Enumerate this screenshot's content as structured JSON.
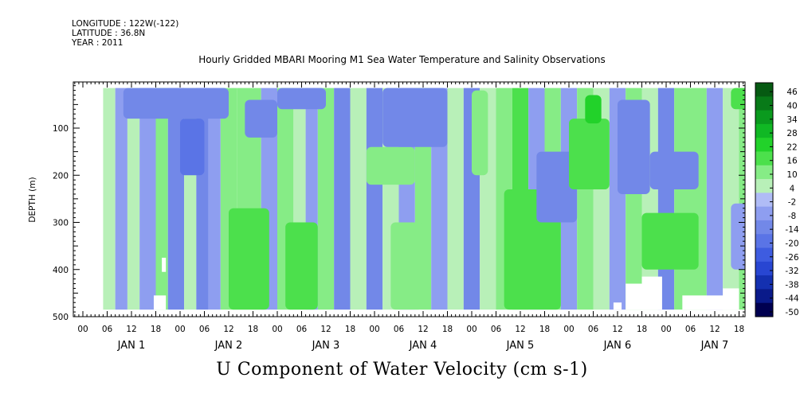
{
  "header": {
    "longitude": "LONGITUDE : 122W(-122)",
    "latitude": "LATITUDE : 36.8N",
    "year": "YEAR : 2011"
  },
  "chart_data": {
    "type": "heatmap",
    "title": "Hourly Gridded MBARI Mooring M1 Sea Water Temperature and Salinity Observations",
    "caption": "U Component of Water Velocity (cm s-1)",
    "ylabel": "DEPTH (m)",
    "ylim": [
      500,
      0
    ],
    "yticks": [
      100,
      200,
      300,
      400,
      500
    ],
    "xhour_labels": [
      "00",
      "06",
      "12",
      "18",
      "00",
      "06",
      "12",
      "18",
      "00",
      "06",
      "12",
      "18",
      "00",
      "06",
      "12",
      "18",
      "00",
      "06",
      "12",
      "18",
      "00",
      "06",
      "12",
      "18",
      "00",
      "06",
      "12",
      "18"
    ],
    "day_labels": [
      "JAN  1",
      "JAN  2",
      "JAN  3",
      "JAN  4",
      "JAN  5",
      "JAN  6",
      "JAN  7"
    ],
    "xlim_hours": [
      0,
      168
    ],
    "colorbar": {
      "levels": [
        46,
        40,
        34,
        28,
        22,
        16,
        10,
        4,
        -2,
        -8,
        -14,
        -20,
        -26,
        -32,
        -38,
        -44,
        -50
      ],
      "labels": [
        "46",
        "40",
        "34",
        "28",
        "22",
        "16",
        "10",
        "4",
        "-2",
        "-8",
        "-14",
        "-20",
        "-26",
        "-32",
        "-38",
        "-44",
        "-50"
      ]
    },
    "data_depth_range_m": [
      15,
      485
    ],
    "data_start_hour": 5,
    "bands": [
      {
        "h0": 5,
        "h1": 8,
        "v": 6
      },
      {
        "h0": 8,
        "h1": 11,
        "v": -6
      },
      {
        "h0": 11,
        "h1": 14,
        "v": 8
      },
      {
        "h0": 14,
        "h1": 18,
        "v": -4
      },
      {
        "h0": 18,
        "h1": 21,
        "v": 10
      },
      {
        "h0": 21,
        "h1": 25,
        "v": -10
      },
      {
        "h0": 25,
        "h1": 28,
        "v": 6
      },
      {
        "h0": 28,
        "h1": 31,
        "v": -14
      },
      {
        "h0": 31,
        "h1": 34,
        "v": -8
      },
      {
        "h0": 34,
        "h1": 38,
        "v": 12
      },
      {
        "h0": 38,
        "h1": 44,
        "v": 14
      },
      {
        "h0": 44,
        "h1": 48,
        "v": -6
      },
      {
        "h0": 48,
        "h1": 52,
        "v": 14
      },
      {
        "h0": 52,
        "h1": 55,
        "v": 6
      },
      {
        "h0": 55,
        "h1": 58,
        "v": -8
      },
      {
        "h0": 58,
        "h1": 62,
        "v": 10
      },
      {
        "h0": 62,
        "h1": 66,
        "v": -10
      },
      {
        "h0": 66,
        "h1": 70,
        "v": 8
      },
      {
        "h0": 70,
        "h1": 74,
        "v": -12
      },
      {
        "h0": 74,
        "h1": 78,
        "v": 6
      },
      {
        "h0": 78,
        "h1": 82,
        "v": -8
      },
      {
        "h0": 82,
        "h1": 86,
        "v": 10
      },
      {
        "h0": 86,
        "h1": 90,
        "v": -4
      },
      {
        "h0": 90,
        "h1": 94,
        "v": 8
      },
      {
        "h0": 94,
        "h1": 98,
        "v": -10
      },
      {
        "h0": 98,
        "h1": 102,
        "v": 6
      },
      {
        "h0": 102,
        "h1": 106,
        "v": 12
      },
      {
        "h0": 106,
        "h1": 110,
        "v": 16
      },
      {
        "h0": 110,
        "h1": 114,
        "v": -6
      },
      {
        "h0": 114,
        "h1": 118,
        "v": 10
      },
      {
        "h0": 118,
        "h1": 122,
        "v": -8
      },
      {
        "h0": 122,
        "h1": 126,
        "v": 14
      },
      {
        "h0": 126,
        "h1": 130,
        "v": 8
      },
      {
        "h0": 130,
        "h1": 134,
        "v": -6
      },
      {
        "h0": 134,
        "h1": 138,
        "v": 12
      },
      {
        "h0": 138,
        "h1": 142,
        "v": 6
      },
      {
        "h0": 142,
        "h1": 146,
        "v": -10
      },
      {
        "h0": 146,
        "h1": 150,
        "v": 10
      },
      {
        "h0": 150,
        "h1": 154,
        "v": 14
      },
      {
        "h0": 154,
        "h1": 158,
        "v": -4
      },
      {
        "h0": 158,
        "h1": 162,
        "v": 8
      },
      {
        "h0": 162,
        "h1": 168,
        "v": 12
      }
    ],
    "cells": [
      {
        "h0": 10,
        "h1": 36,
        "d0": 15,
        "d1": 80,
        "v": -10
      },
      {
        "h0": 24,
        "h1": 30,
        "d0": 80,
        "d1": 200,
        "v": -16
      },
      {
        "h0": 36,
        "h1": 46,
        "d0": 270,
        "d1": 485,
        "v": 18
      },
      {
        "h0": 40,
        "h1": 48,
        "d0": 40,
        "d1": 120,
        "v": -14
      },
      {
        "h0": 48,
        "h1": 60,
        "d0": 15,
        "d1": 60,
        "v": -12
      },
      {
        "h0": 50,
        "h1": 58,
        "d0": 300,
        "d1": 485,
        "v": 20
      },
      {
        "h0": 70,
        "h1": 82,
        "d0": 140,
        "d1": 220,
        "v": 12
      },
      {
        "h0": 74,
        "h1": 90,
        "d0": 15,
        "d1": 140,
        "v": -12
      },
      {
        "h0": 76,
        "h1": 84,
        "d0": 300,
        "d1": 485,
        "v": 12
      },
      {
        "h0": 96,
        "h1": 100,
        "d0": 20,
        "d1": 200,
        "v": 14
      },
      {
        "h0": 104,
        "h1": 118,
        "d0": 230,
        "d1": 485,
        "v": 18
      },
      {
        "h0": 112,
        "h1": 122,
        "d0": 150,
        "d1": 300,
        "v": -14
      },
      {
        "h0": 120,
        "h1": 130,
        "d0": 80,
        "d1": 230,
        "v": 16
      },
      {
        "h0": 124,
        "h1": 128,
        "d0": 30,
        "d1": 90,
        "v": 22
      },
      {
        "h0": 132,
        "h1": 140,
        "d0": 40,
        "d1": 240,
        "v": -10
      },
      {
        "h0": 138,
        "h1": 152,
        "d0": 280,
        "d1": 400,
        "v": 16
      },
      {
        "h0": 140,
        "h1": 152,
        "d0": 150,
        "d1": 230,
        "v": -12
      },
      {
        "h0": 160,
        "h1": 168,
        "d0": 15,
        "d1": 60,
        "v": 16
      },
      {
        "h0": 160,
        "h1": 168,
        "d0": 260,
        "d1": 400,
        "v": -8
      }
    ],
    "missing_regions": [
      {
        "h0": 17.5,
        "h1": 20.5,
        "d0": 455,
        "d1": 485
      },
      {
        "h0": 19.5,
        "h1": 20.5,
        "d0": 375,
        "d1": 405
      },
      {
        "h0": 131,
        "h1": 133,
        "d0": 470,
        "d1": 485
      },
      {
        "h0": 134,
        "h1": 138,
        "d0": 430,
        "d1": 485
      },
      {
        "h0": 138,
        "h1": 143,
        "d0": 415,
        "d1": 485
      },
      {
        "h0": 148,
        "h1": 160,
        "d0": 455,
        "d1": 485
      },
      {
        "h0": 158,
        "h1": 162,
        "d0": 440,
        "d1": 485
      }
    ]
  }
}
